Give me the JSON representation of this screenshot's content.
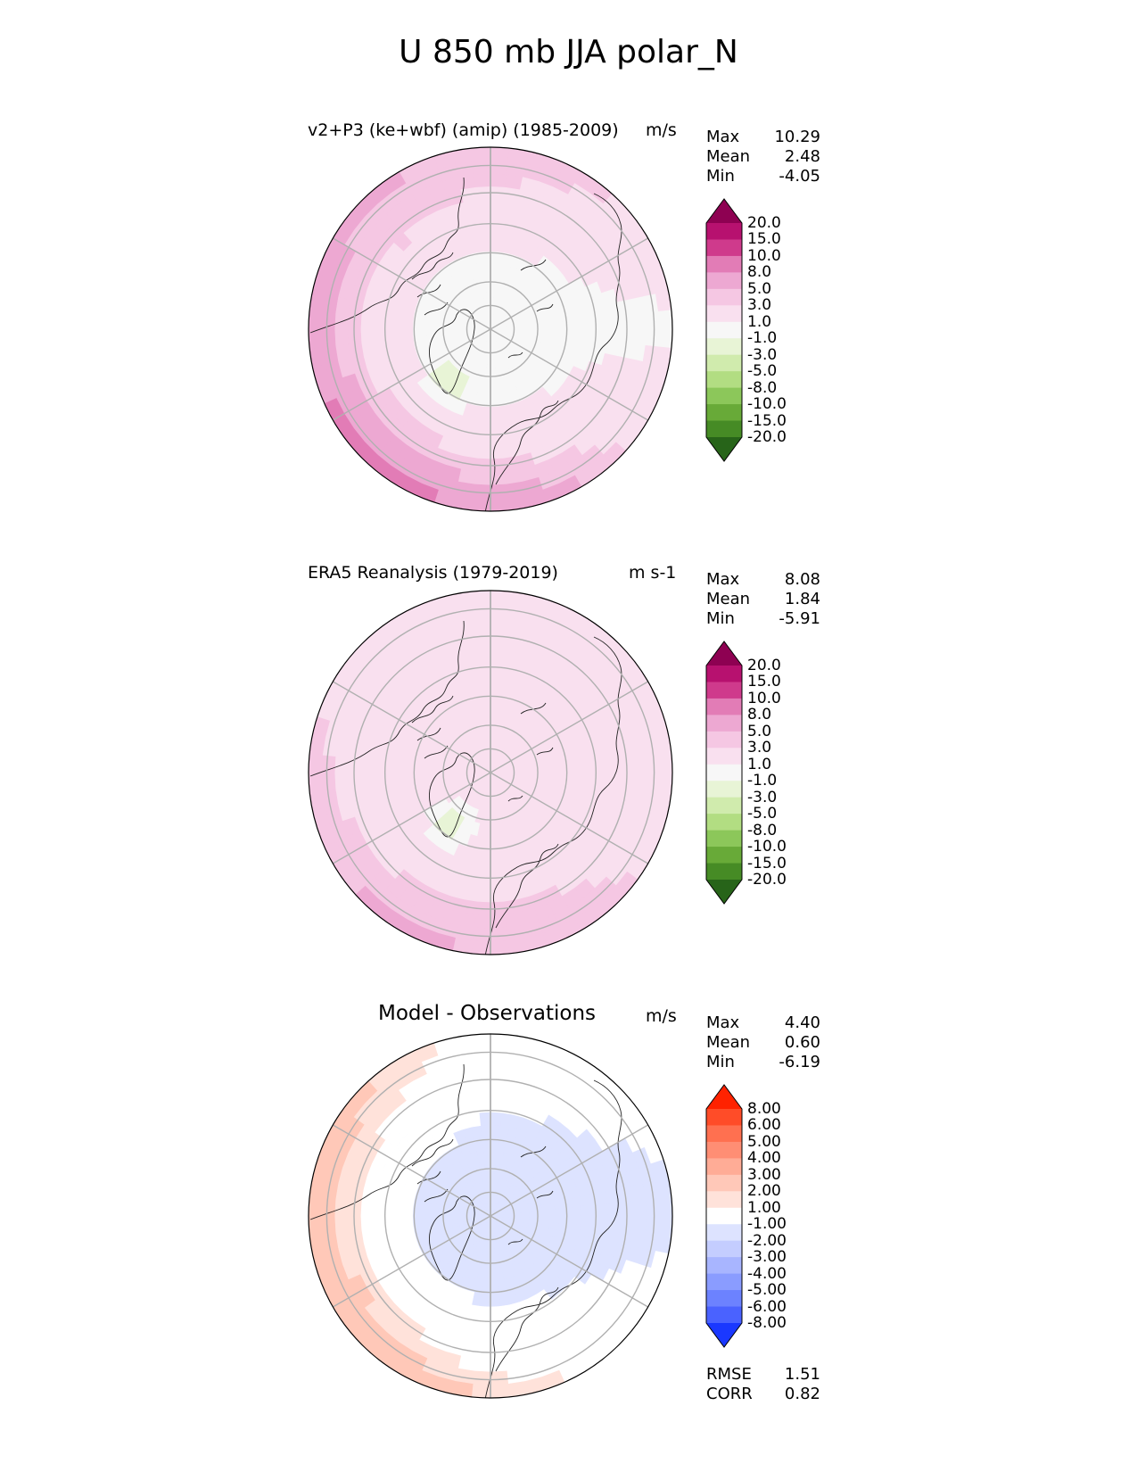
{
  "title": "U 850 mb JJA polar_N",
  "panels": [
    {
      "title": "v2+P3 (ke+wbf) (amip) (1985-2009)",
      "units": "m/s",
      "stats": [
        {
          "label": "Max",
          "value": "10.29"
        },
        {
          "label": "Mean",
          "value": "2.48"
        },
        {
          "label": "Min",
          "value": "-4.05"
        }
      ]
    },
    {
      "title": "ERA5 Reanalysis (1979-2019)",
      "units": "m s-1",
      "stats": [
        {
          "label": "Max",
          "value": "8.08"
        },
        {
          "label": "Mean",
          "value": "1.84"
        },
        {
          "label": "Min",
          "value": "-5.91"
        }
      ]
    },
    {
      "title": "Model - Observations",
      "units": "m/s",
      "stats": [
        {
          "label": "Max",
          "value": "4.40"
        },
        {
          "label": "Mean",
          "value": "0.60"
        },
        {
          "label": "Min",
          "value": "-6.19"
        }
      ],
      "extra_stats": [
        {
          "label": "RMSE",
          "value": "1.51"
        },
        {
          "label": "CORR",
          "value": "0.82"
        }
      ]
    }
  ],
  "colorbars": {
    "field": {
      "labels": [
        "20.0",
        "15.0",
        "10.0",
        "8.0",
        "5.0",
        "3.0",
        "1.0",
        "-1.0",
        "-3.0",
        "-5.0",
        "-8.0",
        "-10.0",
        "-15.0",
        "-20.0"
      ],
      "colors": [
        "#8e0152",
        "#b7116f",
        "#cf3a8c",
        "#e27cb6",
        "#eda8d2",
        "#f5c7e3",
        "#f9e0ef",
        "#f7f7f7",
        "#e8f4d6",
        "#d0ebad",
        "#b2dd82",
        "#8cc75a",
        "#68aa38",
        "#468b25",
        "#276419"
      ]
    },
    "diff": {
      "labels": [
        "8.00",
        "6.00",
        "5.00",
        "4.00",
        "3.00",
        "2.00",
        "1.00",
        "-1.00",
        "-2.00",
        "-3.00",
        "-4.00",
        "-5.00",
        "-6.00",
        "-8.00"
      ],
      "colors": [
        "#ff2200",
        "#ff4c28",
        "#ff7050",
        "#ff8e74",
        "#ffac96",
        "#ffc8b8",
        "#ffe2da",
        "#ffffff",
        "#dde3ff",
        "#c4cdff",
        "#a8b5ff",
        "#8a9cff",
        "#6c82ff",
        "#4a62ff",
        "#1a38ff"
      ]
    }
  },
  "chart_data": [
    {
      "type": "heatmap",
      "projection": "north polar stereographic",
      "title": "v2+P3 (ke+wbf) (amip) (1985-2009)",
      "units": "m/s",
      "max": 10.29,
      "mean": 2.48,
      "min": -4.05,
      "levels": [
        -20,
        -15,
        -10,
        -8,
        -5,
        -3,
        -1,
        1,
        3,
        5,
        8,
        10,
        15,
        20
      ],
      "pattern": {
        "pole": 0.5,
        "arctic_ocean": 0.5,
        "north_america_sector": 4,
        "north_atlantic_sector": 7,
        "north_pacific": 4,
        "southern_rim_max": 10,
        "greenland": -3
      }
    },
    {
      "type": "heatmap",
      "projection": "north polar stereographic",
      "title": "ERA5 Reanalysis (1979-2019)",
      "units": "m s-1",
      "max": 8.08,
      "mean": 1.84,
      "min": -5.91,
      "levels": [
        -20,
        -15,
        -10,
        -8,
        -5,
        -3,
        -1,
        1,
        3,
        5,
        8,
        10,
        15,
        20
      ],
      "pattern": {
        "pole": 2,
        "arctic_ocean": 2,
        "north_america_sector": 2,
        "north_atlantic_sector": 5,
        "north_pacific": 2,
        "southern_rim_max": 6,
        "greenland": -3
      }
    },
    {
      "type": "heatmap",
      "projection": "north polar stereographic",
      "title": "Model - Observations",
      "units": "m/s",
      "max": 4.4,
      "mean": 0.6,
      "min": -6.19,
      "rmse": 1.51,
      "corr": 0.82,
      "levels": [
        -8,
        -6,
        -5,
        -4,
        -3,
        -2,
        -1,
        1,
        2,
        3,
        4,
        5,
        6,
        8
      ],
      "pattern": {
        "pole": -1.5,
        "arctic_ocean": -1.5,
        "north_america_sector": 2.5,
        "north_atlantic_sector": 2,
        "north_pacific": 0,
        "southern_rim_max": 3,
        "greenland": -1
      }
    }
  ]
}
